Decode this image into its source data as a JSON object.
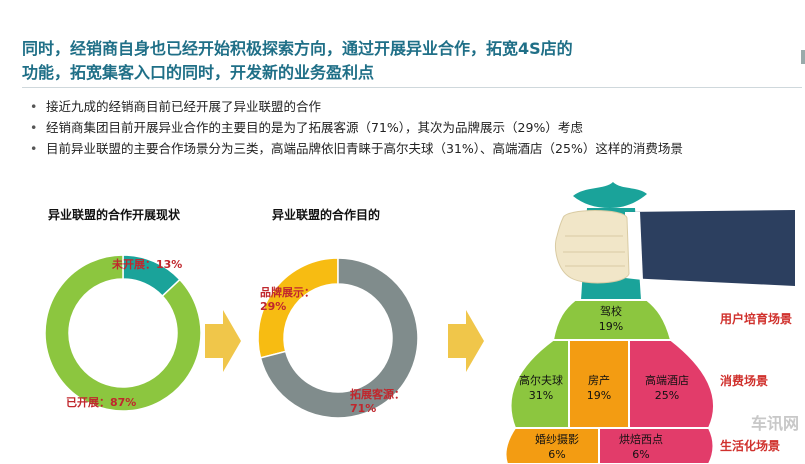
{
  "title": "同时，经销商自身也已经开始积极探索方向，通过开展异业合作，拓宽4S店的功能，拓宽集客入口的同时，开发新的业务盈利点",
  "title_line1": "同时，经销商自身也已经开始积极探索方向，通过开展异业合作，拓宽4S店的",
  "title_line2": "功能，拓宽集客入口的同时，开发新的业务盈利点",
  "bullets": [
    "接近九成的经销商目前已经开展了异业联盟的合作",
    "经销商集团目前开展异业合作的主要目的是为了拓展客源（71%），其次为品牌展示（29%）考虑",
    "目前异业联盟的主要合作场景分为三类，高端品牌依旧青睐于高尔夫球（31%）、高端酒店（25%）这样的消费场景"
  ],
  "colors": {
    "title": "#1f6f87",
    "green": "#8cc63f",
    "teal": "#1aa39a",
    "gray": "#808c8c",
    "yellow": "#f7bc12",
    "orange": "#f39c12",
    "pink": "#e23c6a",
    "arrow": "#f0c64a",
    "red_label": "#d0312d",
    "sleeve": "#2c3f5f",
    "hand": "#f1e6c8"
  },
  "chart_data": [
    {
      "type": "pie",
      "title": "异业联盟的合作开展现状",
      "slices": [
        {
          "label": "未开展：13%",
          "value": 13,
          "color": "#1aa39a"
        },
        {
          "label": "已开展：87%",
          "value": 87,
          "color": "#8cc63f"
        }
      ]
    },
    {
      "type": "pie",
      "title": "异业联盟的合作目的",
      "slices": [
        {
          "label_line1": "品牌展示：",
          "label_line2": "29%",
          "value": 29,
          "color": "#f7bc12"
        },
        {
          "label_line1": "拓展客源：",
          "label_line2": "71%",
          "value": 71,
          "color": "#808c8c"
        }
      ]
    },
    {
      "type": "table",
      "title": "",
      "segments": [
        {
          "name": "驾校",
          "value": 19,
          "pct": "19%",
          "group": "用户培育场景",
          "color": "#8cc63f"
        },
        {
          "name": "高尔夫球",
          "value": 31,
          "pct": "31%",
          "group": "消费场景",
          "color": "#8cc63f"
        },
        {
          "name": "房产",
          "value": 19,
          "pct": "19%",
          "group": "消费场景",
          "color": "#f39c12"
        },
        {
          "name": "高端酒店",
          "value": 25,
          "pct": "25%",
          "group": "消费场景",
          "color": "#e23c6a"
        },
        {
          "name": "婚纱摄影",
          "value": 6,
          "pct": "6%",
          "group": "生活化场景",
          "color": "#f39c12"
        },
        {
          "name": "烘焙西点",
          "value": 6,
          "pct": "6%",
          "group": "生活化场景",
          "color": "#e23c6a"
        }
      ],
      "groups": [
        "用户培育场景",
        "消费场景",
        "生活化场景"
      ]
    }
  ],
  "watermark": "车讯网"
}
